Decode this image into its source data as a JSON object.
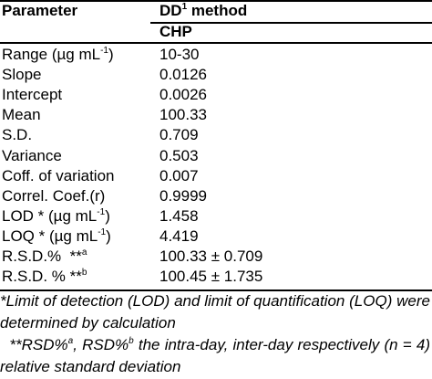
{
  "table": {
    "header": {
      "parameter": "Parameter",
      "method": [
        "DD",
        "1",
        " method"
      ],
      "sub": "CHP"
    },
    "rows": [
      {
        "label": [
          "Range (µg mL",
          "-1",
          ")"
        ],
        "value": "10-30"
      },
      {
        "label": [
          "Slope"
        ],
        "value": "0.0126"
      },
      {
        "label": [
          "Intercept"
        ],
        "value": "0.0026"
      },
      {
        "label": [
          "Mean"
        ],
        "value": "100.33"
      },
      {
        "label": [
          "S.D."
        ],
        "value": "0.709"
      },
      {
        "label": [
          "Variance"
        ],
        "value": "0.503"
      },
      {
        "label": [
          "Coff. of variation"
        ],
        "value": "0.007"
      },
      {
        "label": [
          "Correl. Coef.(r)"
        ],
        "value": "0.9999"
      },
      {
        "label": [
          "LOD * (µg mL",
          "-1",
          ")"
        ],
        "value": "1.458"
      },
      {
        "label": [
          "LOQ * (µg mL",
          "-1",
          ")"
        ],
        "value": "4.419"
      },
      {
        "label": [
          "R.S.D.%  **",
          "a"
        ],
        "value": "100.33 ± 0.709"
      },
      {
        "label": [
          "R.S.D. % **",
          "b"
        ],
        "value": "100.45 ± 1.735"
      }
    ],
    "footnotes": [
      [
        "*Limit of detection (LOD) and limit of quantification (LOQ) were determined by calculation"
      ],
      [
        "  **RSD%",
        "a",
        ", RSD%",
        "b",
        " the intra-day, inter-day respectively (n = 4) relative standard deviation"
      ]
    ]
  }
}
